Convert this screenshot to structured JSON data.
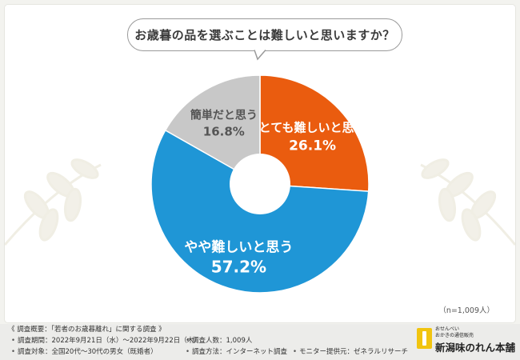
{
  "question": "お歳暮の品を選ぶことは難しいと思いますか？",
  "chart_data": {
    "type": "pie",
    "style": "donut",
    "start_angle_deg": 0,
    "direction": "clockwise",
    "slices": [
      {
        "label": "とても難しいと思う",
        "value": 26.1,
        "value_label": "26.1%",
        "color": "#ea5c0f"
      },
      {
        "label": "やや難しいと思う",
        "value": 57.2,
        "value_label": "57.2%",
        "color": "#1f96d6"
      },
      {
        "label": "簡単だと思う",
        "value": 16.8,
        "value_label": "16.8%",
        "color": "#c8c8c8"
      }
    ],
    "center_color": "#ffffff"
  },
  "sample_size": "（n=1,009人）",
  "footer": {
    "survey_title": "《 調査概要：「若者のお歳暮離れ」に関する調査 》",
    "bullet": "•",
    "period": "調査期間：2022年9月21日（水）～2022年9月22日（木）",
    "count": "調査人数：1,009人",
    "target": "調査対象：全国20代～30代の男女（既婚者）",
    "method": "調査方法：インターネット調査",
    "provider": "モニター提供元：ゼネラルリサーチ"
  },
  "logo": {
    "tagline": "おせんべい\nおかきの通信販売",
    "name": "新潟味のれん本舗"
  }
}
